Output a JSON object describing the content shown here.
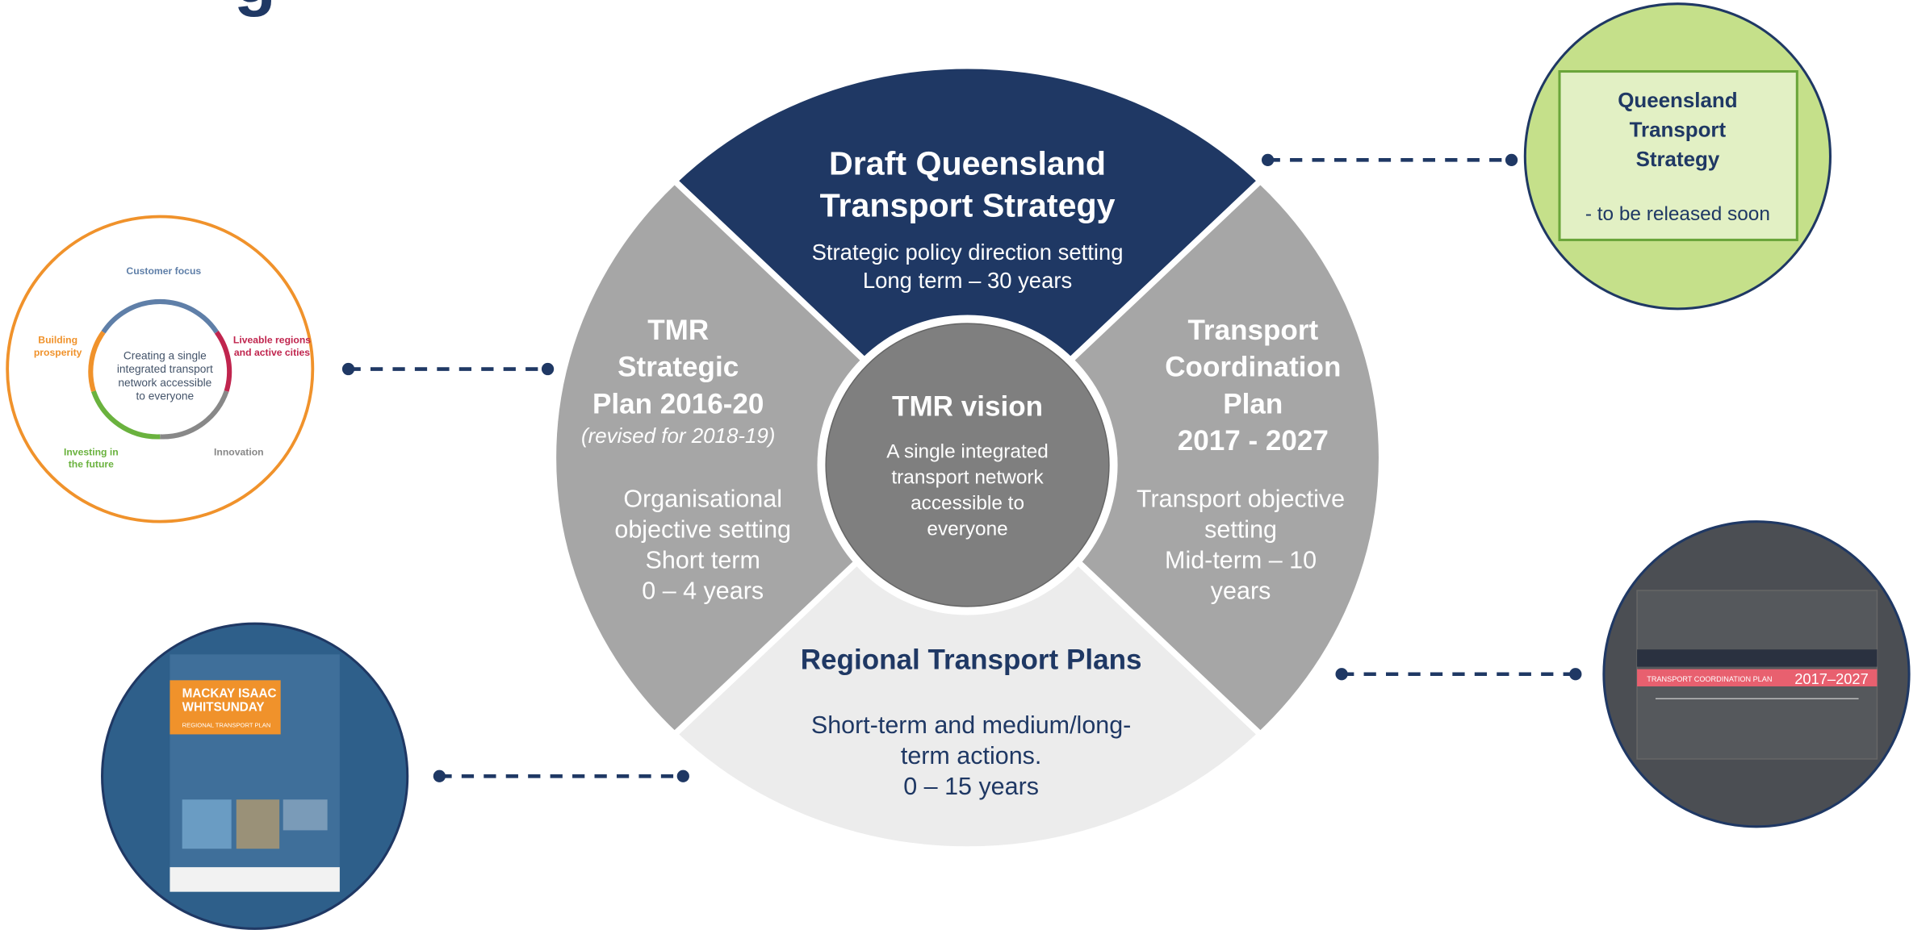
{
  "header": {
    "title_fragment": "g"
  },
  "center": {
    "title": "TMR vision",
    "lines": [
      "A single integrated",
      "transport network",
      "accessible to",
      "everyone"
    ]
  },
  "top": {
    "title": [
      "Draft Queensland",
      "Transport Strategy"
    ],
    "lines": [
      "Strategic policy direction setting",
      "Long term – 30 years"
    ]
  },
  "left": {
    "title": [
      "TMR",
      "Strategic",
      "Plan 2016-20"
    ],
    "note": "(revised for 2018-19)",
    "lines": [
      "Organisational",
      "objective setting",
      "Short term",
      "0 – 4 years"
    ]
  },
  "right": {
    "title": [
      "Transport",
      "Coordination",
      "Plan",
      "2017 - 2027"
    ],
    "lines": [
      "Transport objective",
      "setting",
      "Mid-term – 10",
      "years"
    ]
  },
  "bottom": {
    "title": "Regional Transport Plans",
    "lines": [
      "Short-term and medium/long-",
      "term actions.",
      "0 – 15 years"
    ]
  },
  "objectives": {
    "center": [
      "Creating a single",
      "integrated transport",
      "network accessible",
      "to everyone"
    ],
    "items": [
      [
        "Customer focus"
      ],
      [
        "Building",
        "prosperity"
      ],
      [
        "Liveable regions",
        "and active cities"
      ],
      [
        "Investing in",
        "the future"
      ],
      [
        "Innovation"
      ]
    ]
  },
  "qts": {
    "title": [
      "Queensland",
      "Transport",
      "Strategy"
    ],
    "note": "- to be released soon"
  },
  "rtp": {
    "title": [
      "MACKAY ISAAC",
      "WHITSUNDAY"
    ],
    "subtitle": "REGIONAL TRANSPORT PLAN"
  },
  "tcp": {
    "title": "TRANSPORT COORDINATION PLAN",
    "years": "2017–2027"
  }
}
